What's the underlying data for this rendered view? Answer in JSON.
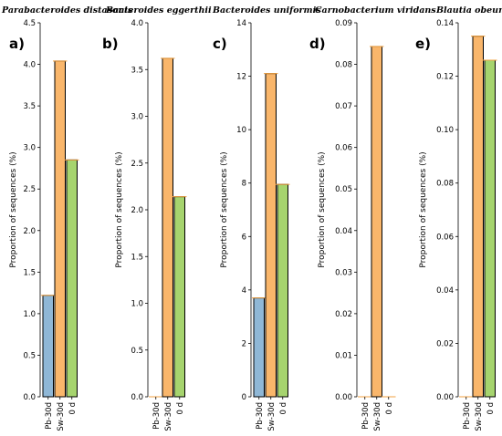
{
  "colors": {
    "Pb-30d": "#8fb7d6",
    "Sw-30d": "#f9b66b",
    "0 d": "#a6d46e",
    "error": "#f0a040"
  },
  "chart_data": [
    {
      "type": "bar",
      "panel": "a)",
      "title": "Parabacteroides distasonis",
      "ylabel": "Proportion of sequences (%)",
      "categories": [
        "Pb-30d",
        "Sw-30d",
        "0 d"
      ],
      "values": [
        1.22,
        4.04,
        2.85
      ],
      "ylim": [
        0,
        4.5
      ],
      "yticks": [
        "0.0",
        "0.5",
        "1.0",
        "1.5",
        "2.0",
        "2.5",
        "3.0",
        "3.5",
        "4.0",
        "4.5"
      ],
      "ytick_values": [
        0,
        0.5,
        1.0,
        1.5,
        2.0,
        2.5,
        3.0,
        3.5,
        4.0,
        4.5
      ]
    },
    {
      "type": "bar",
      "panel": "b)",
      "title": "Bacteroides eggerthii",
      "ylabel": "Proportion of sequences (%)",
      "categories": [
        "Pb-30d",
        "Sw-30d",
        "0 d"
      ],
      "values": [
        0,
        3.62,
        2.14
      ],
      "ylim": [
        0,
        4.0
      ],
      "yticks": [
        "0.0",
        "0.5",
        "1.0",
        "1.5",
        "2.0",
        "2.5",
        "3.0",
        "3.5",
        "4.0"
      ],
      "ytick_values": [
        0,
        0.5,
        1.0,
        1.5,
        2.0,
        2.5,
        3.0,
        3.5,
        4.0
      ]
    },
    {
      "type": "bar",
      "panel": "c)",
      "title": "Bacteroides uniformis",
      "ylabel": "Proportion of sequences (%)",
      "categories": [
        "Pb-30d",
        "Sw-30d",
        "0 d"
      ],
      "values": [
        3.7,
        12.1,
        7.95
      ],
      "ylim": [
        0,
        14
      ],
      "yticks": [
        "0",
        "2",
        "4",
        "6",
        "8",
        "10",
        "12",
        "14"
      ],
      "ytick_values": [
        0,
        2,
        4,
        6,
        8,
        10,
        12,
        14
      ]
    },
    {
      "type": "bar",
      "panel": "d)",
      "title": "Carnobacterium viridans",
      "ylabel": "Proportion of sequences (%)",
      "categories": [
        "Pb-30d",
        "Sw-30d",
        "0 d"
      ],
      "values": [
        0,
        0.0843,
        0
      ],
      "ylim": [
        0,
        0.09
      ],
      "yticks": [
        "0.00",
        "0.01",
        "0.02",
        "0.03",
        "0.04",
        "0.05",
        "0.06",
        "0.07",
        "0.08",
        "0.09"
      ],
      "ytick_values": [
        0,
        0.01,
        0.02,
        0.03,
        0.04,
        0.05,
        0.06,
        0.07,
        0.08,
        0.09
      ]
    },
    {
      "type": "bar",
      "panel": "e)",
      "title": "Blautia obeum",
      "ylabel": "Proportion of sequences (%)",
      "categories": [
        "Pb-30d",
        "Sw-30d",
        "0 d"
      ],
      "values": [
        0,
        0.135,
        0.126
      ],
      "ylim": [
        0,
        0.14
      ],
      "yticks": [
        "0.00",
        "0.02",
        "0.04",
        "0.06",
        "0.08",
        "0.10",
        "0.12",
        "0.14"
      ],
      "ytick_values": [
        0,
        0.02,
        0.04,
        0.06,
        0.08,
        0.1,
        0.12,
        0.14
      ]
    }
  ]
}
